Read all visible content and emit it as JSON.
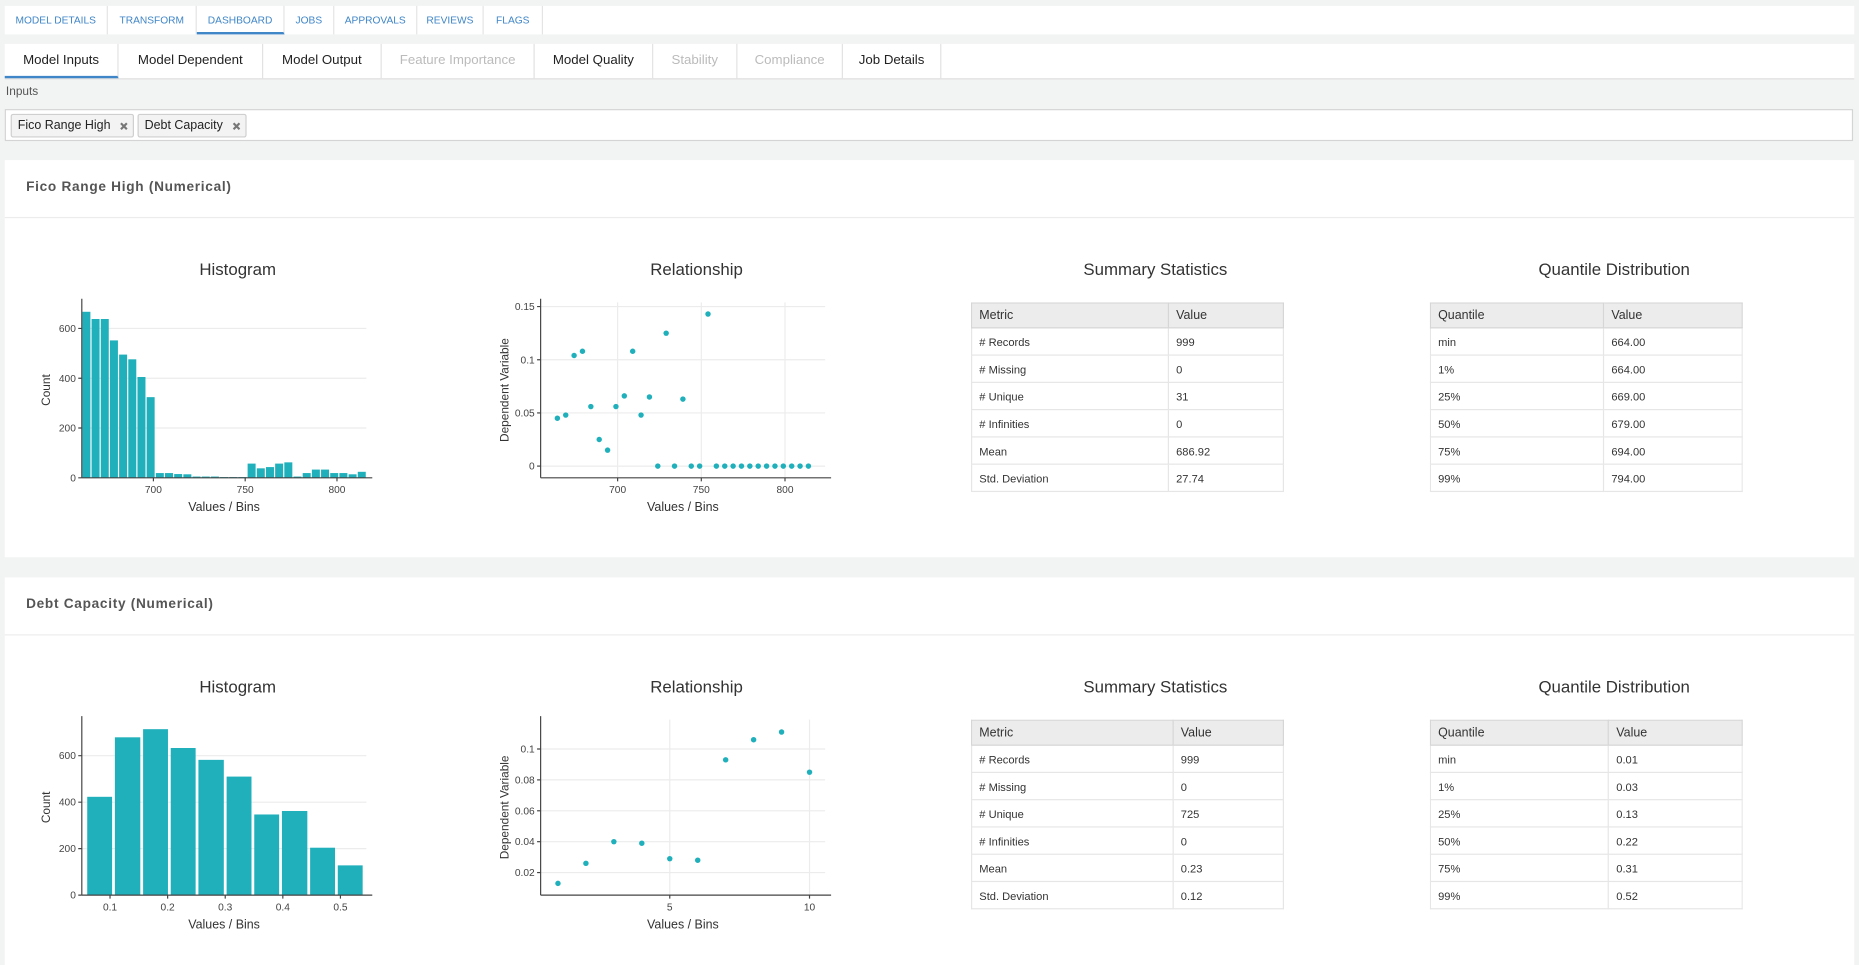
{
  "nav": {
    "tabs": [
      "MODEL DETAILS",
      "TRANSFORM",
      "DASHBOARD",
      "JOBS",
      "APPROVALS",
      "REVIEWS",
      "FLAGS"
    ],
    "subtabs": [
      "Model Inputs",
      "Model Dependent",
      "Model Output",
      "Feature Importance",
      "Model Quality",
      "Stability",
      "Compliance",
      "Job Details"
    ]
  },
  "inputs": {
    "label": "Inputs",
    "chips": [
      "Fico Range High",
      "Debt Capacity"
    ]
  },
  "sections": [
    {
      "title": "Fico Range High (Numerical)",
      "summary": {
        "title": "Summary Statistics",
        "columns": [
          "Metric",
          "Value"
        ],
        "rows": [
          [
            "# Records",
            "999"
          ],
          [
            "# Missing",
            "0"
          ],
          [
            "# Unique",
            "31"
          ],
          [
            "# Infinities",
            "0"
          ],
          [
            "Mean",
            "686.92"
          ],
          [
            "Std. Deviation",
            "27.74"
          ]
        ]
      },
      "quantiles": {
        "title": "Quantile Distribution",
        "columns": [
          "Quantile",
          "Value"
        ],
        "rows": [
          [
            "min",
            "664.00"
          ],
          [
            "1%",
            "664.00"
          ],
          [
            "25%",
            "669.00"
          ],
          [
            "50%",
            "679.00"
          ],
          [
            "75%",
            "694.00"
          ],
          [
            "99%",
            "794.00"
          ]
        ]
      }
    },
    {
      "title": "Debt Capacity (Numerical)",
      "summary": {
        "title": "Summary Statistics",
        "columns": [
          "Metric",
          "Value"
        ],
        "rows": [
          [
            "# Records",
            "999"
          ],
          [
            "# Missing",
            "0"
          ],
          [
            "# Unique",
            "725"
          ],
          [
            "# Infinities",
            "0"
          ],
          [
            "Mean",
            "0.23"
          ],
          [
            "Std. Deviation",
            "0.12"
          ]
        ]
      },
      "quantiles": {
        "title": "Quantile Distribution",
        "columns": [
          "Quantile",
          "Value"
        ],
        "rows": [
          [
            "min",
            "0.01"
          ],
          [
            "1%",
            "0.03"
          ],
          [
            "25%",
            "0.13"
          ],
          [
            "50%",
            "0.22"
          ],
          [
            "75%",
            "0.31"
          ],
          [
            "99%",
            "0.52"
          ]
        ]
      }
    }
  ],
  "chart_data": [
    {
      "type": "histogram",
      "title": "Histogram",
      "x_label": "Values / Bins",
      "y_label": "Count",
      "color": "#1fb0bb",
      "bins": [
        661,
        666,
        671,
        676,
        681,
        686,
        691,
        696,
        701,
        706,
        711,
        716,
        721,
        726,
        731,
        736,
        741,
        746,
        751,
        756,
        761,
        766,
        771,
        776,
        781,
        786,
        791,
        796,
        801,
        806,
        811,
        816
      ],
      "values": [
        667,
        638,
        638,
        552,
        495,
        476,
        405,
        324,
        19,
        19,
        15,
        14,
        5,
        5,
        5,
        3,
        3,
        3,
        57,
        38,
        43,
        57,
        62,
        5,
        19,
        33,
        33,
        19,
        19,
        14,
        24
      ],
      "xlim": [
        661,
        816
      ],
      "ylim": [
        0,
        705
      ],
      "xticks": [
        700,
        750,
        800
      ],
      "yticks": [
        0,
        200,
        400,
        600
      ],
      "grid": "y"
    },
    {
      "type": "scatter",
      "title": "Relationship",
      "x_label": "Values / Bins",
      "y_label": "Dependent Variable",
      "color": "#1fb0bb",
      "x": [
        664,
        669,
        674,
        679,
        684,
        689,
        694,
        699,
        704,
        709,
        714,
        719,
        724,
        729,
        734,
        739,
        744,
        749,
        754,
        759,
        764,
        769,
        774,
        779,
        784,
        789,
        794,
        799,
        804,
        809,
        814
      ],
      "values": [
        0.045,
        0.048,
        0.104,
        0.108,
        0.056,
        0.025,
        0.015,
        0.056,
        0.066,
        0.108,
        0.048,
        0.065,
        0,
        0.125,
        0,
        0.063,
        0,
        0,
        0.143,
        0,
        0,
        0,
        0,
        0,
        0,
        0,
        0,
        0,
        0,
        0,
        0
      ],
      "xlim": [
        654,
        824
      ],
      "ylim": [
        -0.011,
        0.154
      ],
      "xticks": [
        700,
        750,
        800
      ],
      "yticks": [
        0,
        0.05,
        0.1,
        0.15
      ],
      "grid": "both"
    },
    {
      "type": "histogram",
      "title": "Histogram",
      "x_label": "Values / Bins",
      "y_label": "Count",
      "color": "#1fb0bb",
      "bins": [
        0.058,
        0.106,
        0.155,
        0.203,
        0.251,
        0.3,
        0.348,
        0.396,
        0.445,
        0.493,
        0.541
      ],
      "values": [
        423,
        679,
        714,
        633,
        582,
        510,
        347,
        362,
        204,
        128
      ],
      "xlim": [
        0.051,
        0.545
      ],
      "ylim": [
        0,
        755
      ],
      "xticks": [
        0.1,
        0.2,
        0.3,
        0.4,
        0.5
      ],
      "yticks": [
        0,
        200,
        400,
        600
      ],
      "grid": "y"
    },
    {
      "type": "scatter",
      "title": "Relationship",
      "x_label": "Values / Bins",
      "y_label": "Dependent Variable",
      "color": "#1fb0bb",
      "x": [
        1,
        2,
        3,
        4,
        5,
        6,
        7,
        8,
        9,
        10
      ],
      "values": [
        0.013,
        0.026,
        0.04,
        0.039,
        0.029,
        0.028,
        0.093,
        0.106,
        0.111,
        0.085
      ],
      "xlim": [
        0.38,
        10.56
      ],
      "ylim": [
        0.0054,
        0.119
      ],
      "xticks": [
        5,
        10
      ],
      "yticks": [
        0.02,
        0.04,
        0.06,
        0.08,
        0.1
      ],
      "grid": "both"
    }
  ]
}
